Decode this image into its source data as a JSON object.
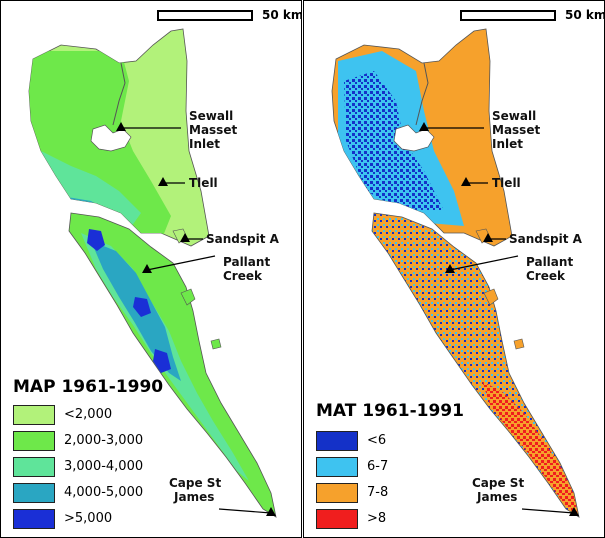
{
  "scale_label": "50 km",
  "places": {
    "sewall_masset": [
      "Sewall",
      "Masset",
      "Inlet"
    ],
    "tlell": "Tlell",
    "sandspit": "Sandspit A",
    "pallant": [
      "Pallant",
      "Creek"
    ],
    "cape": [
      "Cape St",
      "James"
    ]
  },
  "left": {
    "title": "MAP 1961-1990",
    "legend": [
      {
        "label": "<2,000",
        "color": "#b2f27a"
      },
      {
        "label": "2,000-3,000",
        "color": "#6ee84a"
      },
      {
        "label": "3,000-4,000",
        "color": "#5fe49a"
      },
      {
        "label": "4,000-5,000",
        "color": "#2aa6c2"
      },
      {
        "label": ">5,000",
        "color": "#1a2fd6"
      }
    ]
  },
  "right": {
    "title": "MAT 1961-1991",
    "legend": [
      {
        "label": "<6",
        "color": "#1431c8"
      },
      {
        "label": "6-7",
        "color": "#3ec3f0"
      },
      {
        "label": "7-8",
        "color": "#f6a12c"
      },
      {
        "label": ">8",
        "color": "#f01e1e"
      }
    ]
  }
}
